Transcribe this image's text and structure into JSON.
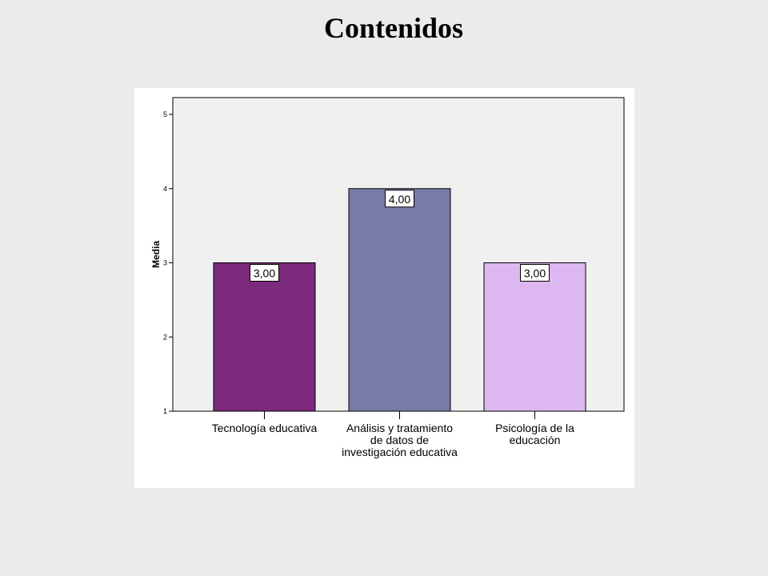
{
  "slide": {
    "title": "Contenidos"
  },
  "chart_data": {
    "type": "bar",
    "categories": [
      "Tecnología educativa",
      "Análisis y tratamiento de datos de investigación educativa",
      "Psicología de la educación"
    ],
    "category_lines": [
      [
        "Tecnología educativa"
      ],
      [
        "Análisis y tratamiento",
        "de datos de",
        "investigación educativa"
      ],
      [
        "Psicología de la",
        "educación"
      ]
    ],
    "values": [
      3,
      4,
      3
    ],
    "data_labels": [
      "3,00",
      "4,00",
      "3,00"
    ],
    "colors": [
      "#7b2a7c",
      "#7a7aa8",
      "#ddb8f0"
    ],
    "ylabel": "Media",
    "xlabel": "",
    "ylim": [
      1,
      5
    ],
    "yticks": [
      "1",
      "2",
      "3",
      "4",
      "5"
    ],
    "grid": false,
    "plot_background": "#f0f0f0"
  }
}
